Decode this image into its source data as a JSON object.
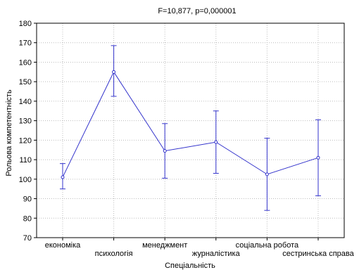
{
  "chart_data": {
    "type": "line",
    "title": "F=10,877, p=0,000001",
    "xlabel": "Спеціальність",
    "ylabel": "Рольова компетентність",
    "ylim": [
      70,
      180
    ],
    "yticks": [
      70,
      80,
      90,
      100,
      110,
      120,
      130,
      140,
      150,
      160,
      170,
      180
    ],
    "ytick_labels": [
      "70",
      "80",
      "90",
      "100",
      "110",
      "120",
      "130",
      "140",
      "150",
      "160",
      "170",
      "180"
    ],
    "categories": [
      "економіка",
      "психологія",
      "менеджмент",
      "журналістика",
      "соціальна робота",
      "сестринська справа"
    ],
    "grid": true,
    "series": [
      {
        "values": [
          101,
          155,
          114.5,
          119,
          102.5,
          111
        ],
        "error_low": [
          95,
          142.5,
          100.5,
          103,
          84,
          91.5
        ],
        "error_high": [
          108,
          168.5,
          128.5,
          135,
          121,
          130.5
        ]
      }
    ],
    "colors": {
      "series": "#3333cc",
      "error_bar": "#3333cc",
      "grid": "#bcbcbc",
      "axis": "#000000"
    }
  }
}
